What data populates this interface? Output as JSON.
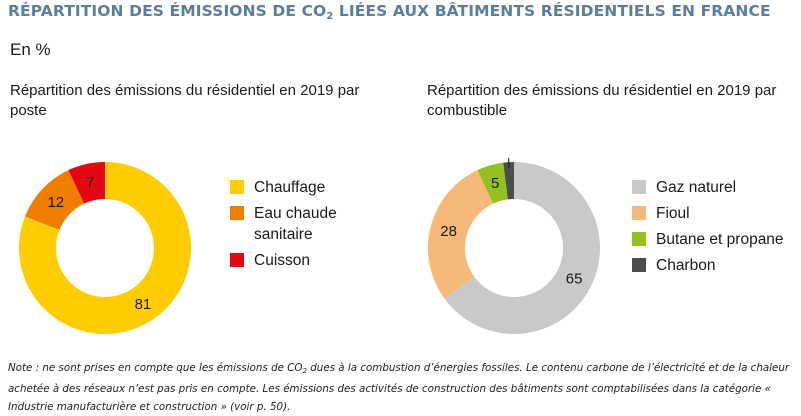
{
  "header": {
    "title_part1": "RÉPARTITION DES ÉMISSIONS DE CO",
    "title_sub": "2",
    "title_part2": " LIÉES AUX BÂTIMENTS RÉSIDENTIELS EN FRANCE",
    "unit": "En %"
  },
  "chart_data": [
    {
      "type": "pie",
      "title": "Répartition des émissions du résidentiel en 2019 par poste",
      "categories": [
        "Chauffage",
        "Eau chaude sanitaire",
        "Cuisson"
      ],
      "values": [
        81,
        12,
        7
      ],
      "colors": [
        "#ffcc00",
        "#ef7d00",
        "#e30613"
      ],
      "legend_position": "right",
      "legend_lines": [
        [
          "Chauffage"
        ],
        [
          "Eau chaude",
          "sanitaire"
        ],
        [
          "Cuisson"
        ]
      ]
    },
    {
      "type": "pie",
      "title": "Répartition des émissions du résidentiel en 2019 par combustible",
      "categories": [
        "Gaz naturel",
        "Fioul",
        "Butane et propane",
        "Charbon"
      ],
      "values": [
        65,
        28,
        5,
        2
      ],
      "colors": [
        "#c9c9c9",
        "#f5b97a",
        "#95c11f",
        "#4d4d4d"
      ],
      "legend_position": "right",
      "legend_lines": [
        [
          "Gaz naturel"
        ],
        [
          "Fioul"
        ],
        [
          "Butane et propane"
        ],
        [
          "Charbon"
        ]
      ]
    }
  ],
  "note": {
    "part1": "Note : ne sont prises en compte que les émissions de CO",
    "sub": "2",
    "part2": " dues à la combustion d’énergies fossiles. Le contenu carbone de l’électricité et de la chaleur achetée à des réseaux n’est pas pris en compte. Les émissions des activités de construction des bâtiments sont comptabilisées dans la catégorie « Industrie manufacturière et construction » (voir p. 50)."
  }
}
